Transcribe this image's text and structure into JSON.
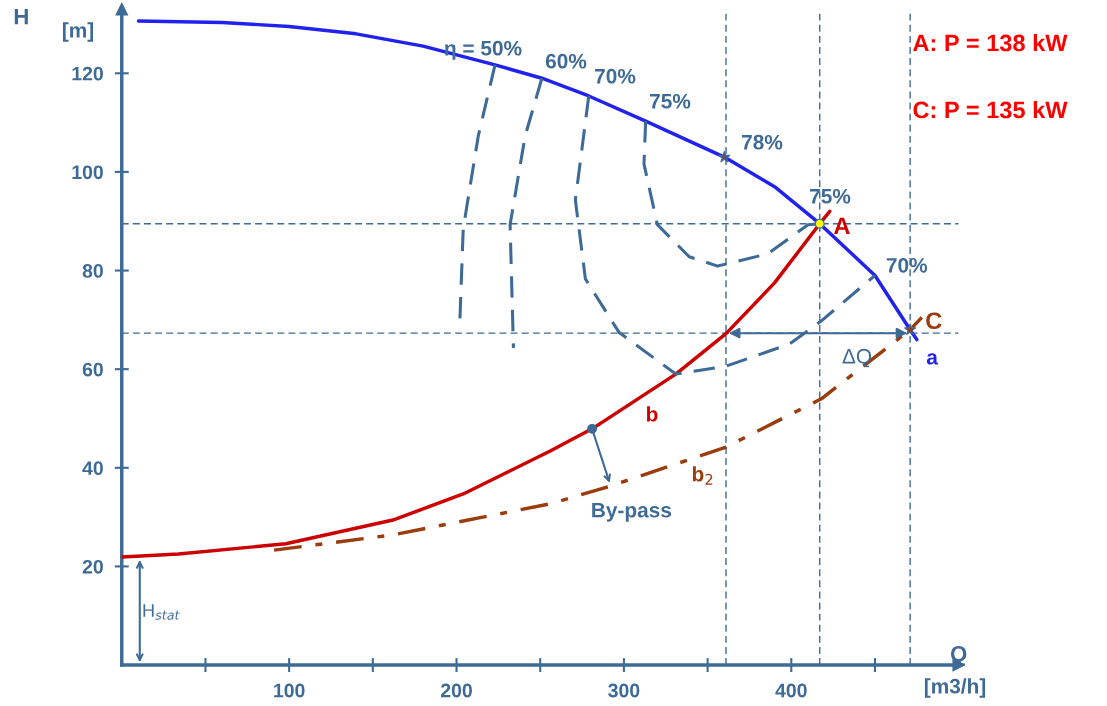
{
  "chart_data": {
    "type": "line",
    "xlabel": "Q",
    "ylabel": "H",
    "xlim": [
      0,
      500
    ],
    "ylim": [
      0,
      133
    ],
    "xticks": [
      {
        "value": 50,
        "label": null
      },
      100,
      {
        "value": 150,
        "label": null
      },
      200,
      {
        "value": 250,
        "label": null
      },
      300,
      {
        "value": 350,
        "label": null
      },
      400,
      {
        "value": 450,
        "label": null
      }
    ],
    "yticks": [
      20,
      40,
      60,
      80,
      100,
      120
    ],
    "grid": false,
    "legend": false,
    "series": [
      {
        "color": "#2222ee",
        "line_style": "solid",
        "x": [
          10,
          60,
          100,
          140,
          180,
          223,
          251,
          279,
          313,
          360,
          390,
          417,
          450,
          471,
          475
        ],
        "values": [
          130.6,
          130.3,
          129.5,
          128,
          125.5,
          121.7,
          119,
          115.4,
          110.3,
          103,
          97,
          89.5,
          79,
          68,
          66
        ]
      },
      {
        "color": "#cc0000",
        "line_style": "solid",
        "x": [
          0,
          34,
          98,
          162,
          204,
          256,
          281,
          331,
          361,
          390,
          417,
          423
        ],
        "values": [
          21.9,
          22.5,
          24.6,
          29.4,
          34.7,
          43.4,
          47.9,
          59,
          67.2,
          77.5,
          89.5,
          92
        ]
      },
      {
        "color": "#9a3c0c",
        "line_style": "dashdot",
        "x": [
          91,
          162,
          256,
          292,
          361,
          418,
          471,
          478
        ],
        "values": [
          23.3,
          26.4,
          32.7,
          36.3,
          44.2,
          54,
          68,
          70.5
        ]
      },
      {
        "color": "#3d6a96",
        "line_style": "dashed",
        "x": [
          223,
          213,
          204,
          202
        ],
        "values": [
          121.7,
          107.3,
          88.5,
          69.8
        ]
      },
      {
        "color": "#3d6a96",
        "line_style": "dashed",
        "x": [
          251,
          241,
          232,
          234
        ],
        "values": [
          119,
          107.3,
          89.3,
          64.3
        ]
      },
      {
        "color": "#3d6a96",
        "line_style": "dashed",
        "x": [
          279,
          271,
          277,
          297,
          331,
          361,
          399,
          418,
          450
        ],
        "values": [
          115.4,
          94.3,
          78.3,
          67.5,
          59,
          60.6,
          65.1,
          69.8,
          79
        ]
      },
      {
        "color": "#3d6a96",
        "line_style": "dashed",
        "x": [
          313,
          312,
          320,
          339,
          356,
          386,
          410,
          417
        ],
        "values": [
          110.3,
          101.6,
          89.3,
          82.8,
          80.9,
          83.4,
          89.3,
          89.5
        ]
      },
      {
        "type": "scatter",
        "color": "#6a4a6a",
        "marker": "star",
        "x": [
          360
        ],
        "values": [
          103
        ]
      },
      {
        "type": "scatter",
        "color": "#ffff00",
        "marker": "circle",
        "x": [
          417
        ],
        "values": [
          89.5
        ]
      },
      {
        "type": "scatter",
        "color": "#9a3c0c",
        "marker": "star",
        "x": [
          471
        ],
        "values": [
          68
        ]
      },
      {
        "type": "scatter",
        "color": "#3d6a96",
        "marker": "circle",
        "x": [
          281
        ],
        "values": [
          47.9
        ]
      }
    ],
    "ref_lines": [
      {
        "axis": "y",
        "value": 89.5,
        "color": "#3d6a96",
        "line_style": "dashed"
      },
      {
        "axis": "y",
        "value": 67.3,
        "color": "#3d6a96",
        "line_style": "dashed"
      },
      {
        "axis": "x",
        "value": 361,
        "color": "#3d6a96",
        "line_style": "dashed"
      },
      {
        "axis": "x",
        "value": 417,
        "color": "#3d6a96",
        "line_style": "dashed"
      },
      {
        "axis": "x",
        "value": 471,
        "color": "#3d6a96",
        "line_style": "dashed"
      }
    ],
    "annotations": [
      "η = 50%",
      "60%",
      "70%",
      "75%",
      "78%",
      "75%",
      {
        "text": "70%",
        "x": 469,
        "y": 80.7
      },
      {
        "text": "A",
        "x": 417,
        "y": 89.5
      },
      {
        "text": "C",
        "x": 471,
        "y": 68
      },
      {
        "text": "a",
        "x": 475,
        "y": 66
      },
      "b",
      "b$_{2}$",
      "ΔQ",
      {
        "text": "By-pass",
        "x": 292,
        "y": 36.4
      },
      "H$_{stat}$",
      "[m]",
      "[m3/h]",
      "A: P = 138 kW",
      "C: P = 135 kW"
    ]
  }
}
